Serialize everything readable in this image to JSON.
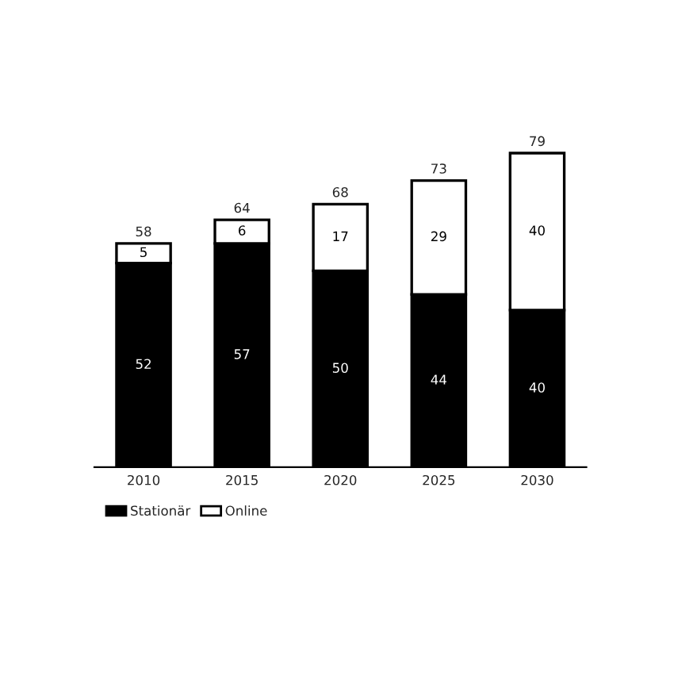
{
  "chart_data": {
    "type": "bar",
    "stacked": true,
    "categories": [
      "2010",
      "2015",
      "2020",
      "2025",
      "2030"
    ],
    "series": [
      {
        "name": "Stationär",
        "color": "#000000",
        "values": [
          52,
          57,
          50,
          44,
          40
        ]
      },
      {
        "name": "Online",
        "color": "#ffffff",
        "values": [
          5,
          6,
          17,
          29,
          40
        ]
      }
    ],
    "totals": [
      "58",
      "64",
      "68",
      "73",
      "79"
    ],
    "data_labels": true,
    "legend": "bottom left",
    "tick_labels": "x",
    "grid": false
  }
}
